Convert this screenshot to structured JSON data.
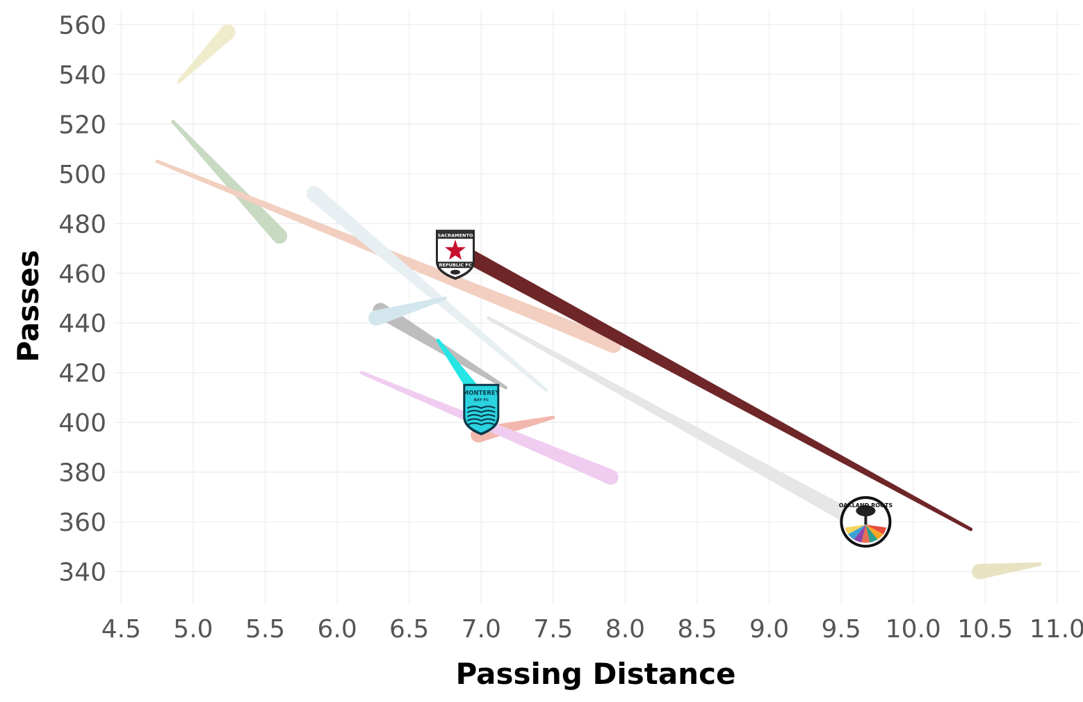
{
  "chart_data": {
    "type": "scatter",
    "title": "",
    "xlabel": "Passing Distance",
    "ylabel": "Passes",
    "xlim": [
      4.45,
      11.15
    ],
    "ylim": [
      327,
      566
    ],
    "x_ticks": [
      "4.5",
      "5.0",
      "5.5",
      "6.0",
      "6.5",
      "7.0",
      "7.5",
      "8.0",
      "8.5",
      "9.0",
      "9.5",
      "10.0",
      "10.5",
      "11.0"
    ],
    "y_ticks": [
      "340",
      "360",
      "380",
      "400",
      "420",
      "440",
      "460",
      "480",
      "500",
      "520",
      "540",
      "560"
    ],
    "grid": true,
    "legend": "none",
    "series": [
      {
        "color": "#efeccc",
        "start": [
          4.9,
          537
        ],
        "end": [
          5.24,
          557
        ]
      },
      {
        "color": "#c8dac2",
        "start": [
          4.86,
          521
        ],
        "end": [
          5.6,
          475
        ]
      },
      {
        "color": "#f2cfc0",
        "start": [
          4.75,
          505
        ],
        "end": [
          7.92,
          431
        ]
      },
      {
        "color": "#e7eff2",
        "start": [
          7.45,
          413
        ],
        "end": [
          5.84,
          492
        ]
      },
      {
        "color": "#bdbdbd",
        "start": [
          7.17,
          414
        ],
        "end": [
          6.3,
          445
        ]
      },
      {
        "color": "#d3e6ed",
        "start": [
          6.75,
          450
        ],
        "end": [
          6.27,
          442
        ]
      },
      {
        "color": "#f2b8ae",
        "start": [
          7.5,
          402
        ],
        "end": [
          6.98,
          395
        ]
      },
      {
        "color": "#f0cdf0",
        "start": [
          6.17,
          420
        ],
        "end": [
          7.9,
          378
        ]
      },
      {
        "color": "#e6e6e6",
        "start": [
          7.05,
          442
        ],
        "end": [
          9.62,
          360
        ]
      },
      {
        "color": "#6e2629",
        "start": [
          10.4,
          357
        ],
        "end": [
          6.88,
          468
        ]
      },
      {
        "color": "#27e5e5",
        "start": [
          6.7,
          433
        ],
        "end": [
          7.05,
          405
        ]
      },
      {
        "color": "#e8e2c2",
        "start": [
          10.88,
          343
        ],
        "end": [
          10.46,
          340
        ]
      }
    ],
    "logos": [
      {
        "name": "sacramento",
        "x": 6.82,
        "y": 468,
        "line1": "SACRAMENTO",
        "line2": "REPUBLIC FC",
        "bg": "#ffffff",
        "border": "#2a2a2a",
        "accent": "#c8102e"
      },
      {
        "name": "monterey",
        "x": 7.0,
        "y": 406,
        "line1": "MONTEREY",
        "line2": "BAY FC",
        "bg": "#2bd3e0",
        "border": "#0a3a4a",
        "accent": "#0a3a4a"
      },
      {
        "name": "oakland",
        "x": 9.67,
        "y": 360,
        "line1": "OAKLAND ROOTS",
        "line2": "",
        "bg": "#ffffff",
        "border": "#111111",
        "accent": "#111111"
      }
    ]
  }
}
